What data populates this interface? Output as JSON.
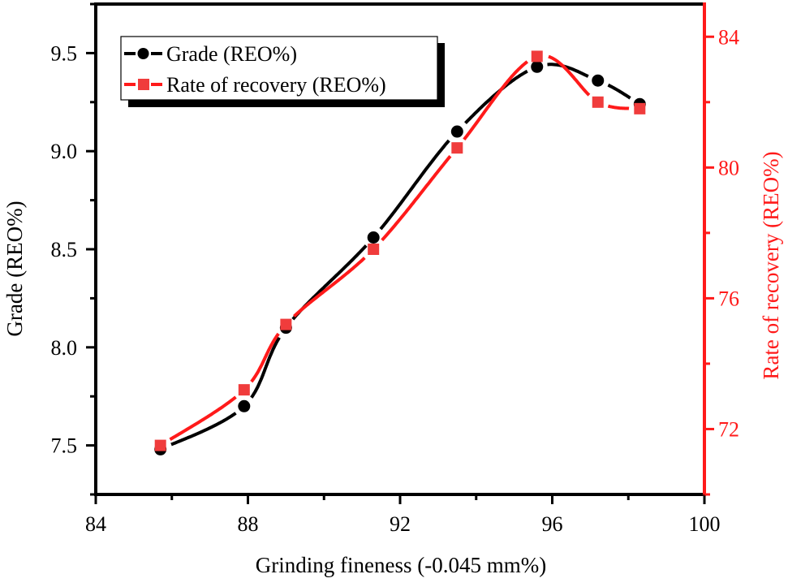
{
  "chart_data": {
    "type": "line",
    "title": "",
    "xlabel": "Grinding fineness (-0.045 mm%)",
    "ylabel": "Grade (REO%)",
    "y2label": "Rate of recovery (REO%)",
    "xlim": [
      84,
      100
    ],
    "ylim": [
      7.25,
      9.75
    ],
    "y2lim": [
      70,
      85
    ],
    "x_ticks": [
      84,
      88,
      92,
      96,
      100
    ],
    "x_tick_labels": [
      "84",
      "88",
      "92",
      "96",
      "100"
    ],
    "y_ticks": [
      7.5,
      8.0,
      8.5,
      9.0,
      9.5
    ],
    "y_tick_labels": [
      "7.5",
      "8.0",
      "8.5",
      "9.0",
      "9.5"
    ],
    "y2_ticks": [
      72,
      76,
      80,
      84
    ],
    "y2_tick_labels": [
      "72",
      "76",
      "80",
      "84"
    ],
    "grid": false,
    "legend_position": "top-left",
    "x": [
      85.7,
      87.9,
      89.0,
      91.3,
      93.5,
      95.6,
      97.2,
      98.3
    ],
    "series": [
      {
        "name": "Grade (REO%)",
        "axis": "left",
        "marker": "circle",
        "color": "#000000",
        "values": [
          7.48,
          7.7,
          8.1,
          8.56,
          9.1,
          9.43,
          9.36,
          9.24
        ]
      },
      {
        "name": "Rate of recovery (REO%)",
        "axis": "right",
        "marker": "square",
        "color": "#ff1a1a",
        "marker_color": "#f03c3c",
        "values": [
          71.5,
          73.2,
          75.2,
          77.5,
          80.6,
          83.4,
          82.0,
          81.8
        ]
      }
    ]
  },
  "colors": {
    "left_axis": "#000000",
    "right_axis": "#ff1a1a"
  }
}
